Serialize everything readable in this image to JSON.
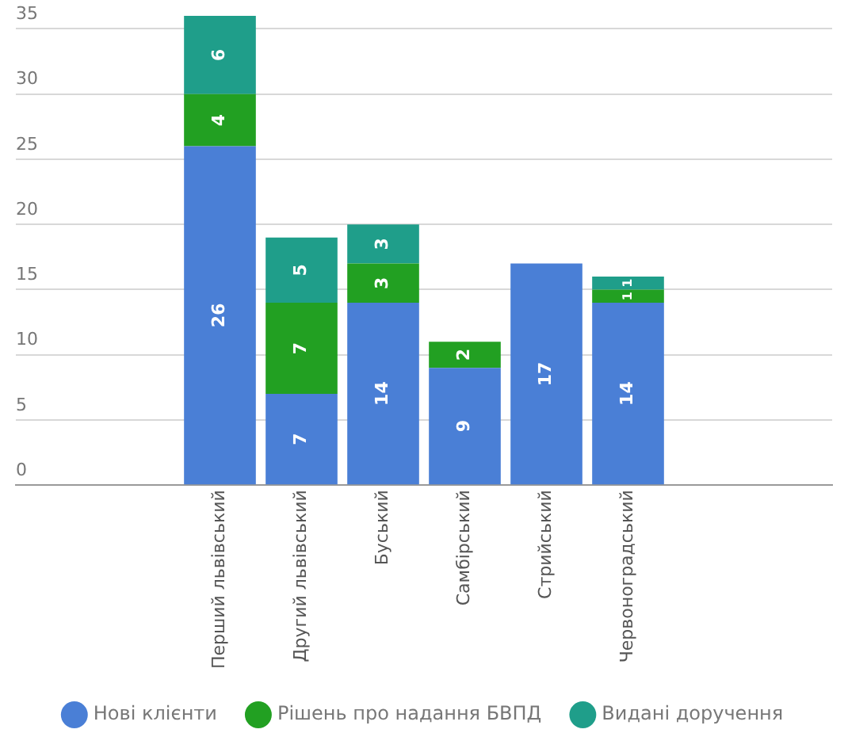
{
  "chart_data": {
    "type": "bar",
    "stacked": true,
    "categories": [
      null,
      null,
      "Перший львівський",
      "Другий львівський",
      "Буський",
      "Самбірський",
      "Стрийський",
      "Червоноградський",
      null,
      null
    ],
    "series": [
      {
        "name": "Нові клієнти",
        "color": "#4a7fd6",
        "values": [
          null,
          null,
          26,
          7,
          14,
          9,
          17,
          14,
          null,
          null
        ]
      },
      {
        "name": "Рішень про надання БВПД",
        "color": "#22a022",
        "values": [
          null,
          null,
          4,
          7,
          3,
          2,
          null,
          1,
          null,
          null
        ]
      },
      {
        "name": "Видані доручення",
        "color": "#1f9e8a",
        "values": [
          null,
          null,
          6,
          5,
          3,
          null,
          null,
          1,
          null,
          null
        ]
      }
    ],
    "ylim": [
      0,
      36
    ],
    "yticks": [
      0,
      5,
      10,
      15,
      20,
      25,
      30,
      35
    ],
    "grid": "y",
    "legend": "bottom",
    "data_labels": true
  }
}
